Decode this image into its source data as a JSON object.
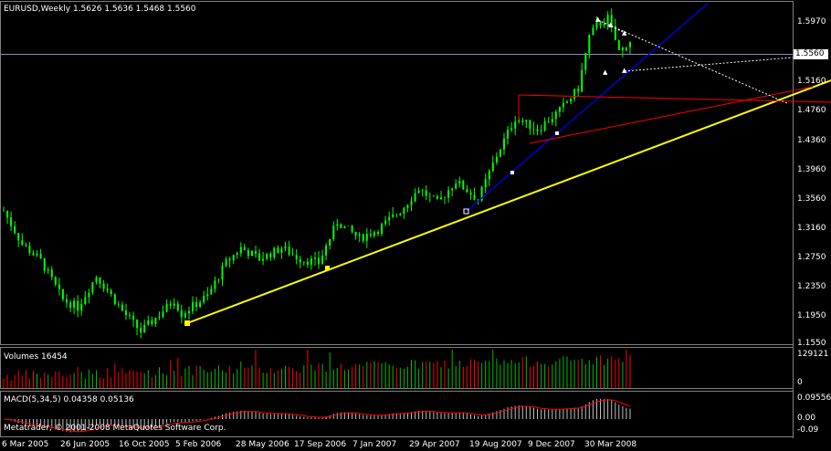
{
  "window": {
    "title": "EURUSD,Weekly  1.5626 1.5636 1.5468 1.5560",
    "current_price": "1.5560"
  },
  "price_axis": {
    "labels": [
      "1.5970",
      "1.5560",
      "1.5160",
      "1.4760",
      "1.4360",
      "1.3960",
      "1.3560",
      "1.3160",
      "1.2750",
      "1.2350",
      "1.1950",
      "1.1550"
    ]
  },
  "volumes": {
    "label": "Volumes 16454",
    "axis": [
      "129121",
      "0"
    ]
  },
  "macd": {
    "label": "MACD(5,34,5) 0.04358 0.05136",
    "axis": [
      "0.09556",
      "0.00",
      "-0.09"
    ]
  },
  "copyright": "Metatrader, © 2001-2008 MetaQuotes Software Corp.",
  "time_axis": {
    "labels": [
      "6 Mar 2005",
      "26 Jun 2005",
      "16 Oct 2005",
      "5 Feb 2006",
      "28 May 2006",
      "17 Sep 2006",
      "7 Jan 2007",
      "29 Apr 2007",
      "19 Aug 2007",
      "9 Dec 2007",
      "30 Mar 2008"
    ]
  },
  "colors": {
    "background": "#000000",
    "candles": "#00ff00",
    "trendline_main": "#ffff00",
    "trendline_blue": "#0000ff",
    "channel_red": "#ff0000",
    "volume_bars": "#ff0000",
    "frame": "#808080"
  },
  "chart_data": {
    "type": "candlestick",
    "symbol": "EURUSD",
    "timeframe": "Weekly",
    "last_bar": {
      "open": 1.5626,
      "high": 1.5636,
      "low": 1.5468,
      "close": 1.556
    },
    "ylim": [
      1.155,
      1.617
    ],
    "close_path": [
      {
        "date": "2005-03-06",
        "close": 1.335
      },
      {
        "date": "2005-04-10",
        "close": 1.29
      },
      {
        "date": "2005-05-15",
        "close": 1.268
      },
      {
        "date": "2005-06-26",
        "close": 1.215
      },
      {
        "date": "2005-07-24",
        "close": 1.205
      },
      {
        "date": "2005-08-28",
        "close": 1.247
      },
      {
        "date": "2005-09-18",
        "close": 1.228
      },
      {
        "date": "2005-10-16",
        "close": 1.2
      },
      {
        "date": "2005-11-20",
        "close": 1.172
      },
      {
        "date": "2005-12-25",
        "close": 1.195
      },
      {
        "date": "2006-01-22",
        "close": 1.215
      },
      {
        "date": "2006-02-05",
        "close": 1.196
      },
      {
        "date": "2006-03-26",
        "close": 1.22
      },
      {
        "date": "2006-04-30",
        "close": 1.265
      },
      {
        "date": "2006-05-28",
        "close": 1.285
      },
      {
        "date": "2006-07-02",
        "close": 1.27
      },
      {
        "date": "2006-08-13",
        "close": 1.285
      },
      {
        "date": "2006-09-17",
        "close": 1.27
      },
      {
        "date": "2006-10-22",
        "close": 1.265
      },
      {
        "date": "2006-11-26",
        "close": 1.32
      },
      {
        "date": "2007-01-07",
        "close": 1.298
      },
      {
        "date": "2007-02-11",
        "close": 1.31
      },
      {
        "date": "2007-03-25",
        "close": 1.335
      },
      {
        "date": "2007-04-29",
        "close": 1.365
      },
      {
        "date": "2007-06-03",
        "close": 1.345
      },
      {
        "date": "2007-07-08",
        "close": 1.375
      },
      {
        "date": "2007-08-19",
        "close": 1.35
      },
      {
        "date": "2007-09-23",
        "close": 1.41
      },
      {
        "date": "2007-10-28",
        "close": 1.46
      },
      {
        "date": "2007-12-09",
        "close": 1.445
      },
      {
        "date": "2008-01-20",
        "close": 1.47
      },
      {
        "date": "2008-02-24",
        "close": 1.5
      },
      {
        "date": "2008-03-16",
        "close": 1.57
      },
      {
        "date": "2008-03-30",
        "close": 1.585
      },
      {
        "date": "2008-04-20",
        "close": 1.595
      },
      {
        "date": "2008-05-11",
        "close": 1.55
      },
      {
        "date": "2008-06-01",
        "close": 1.56
      }
    ]
  }
}
